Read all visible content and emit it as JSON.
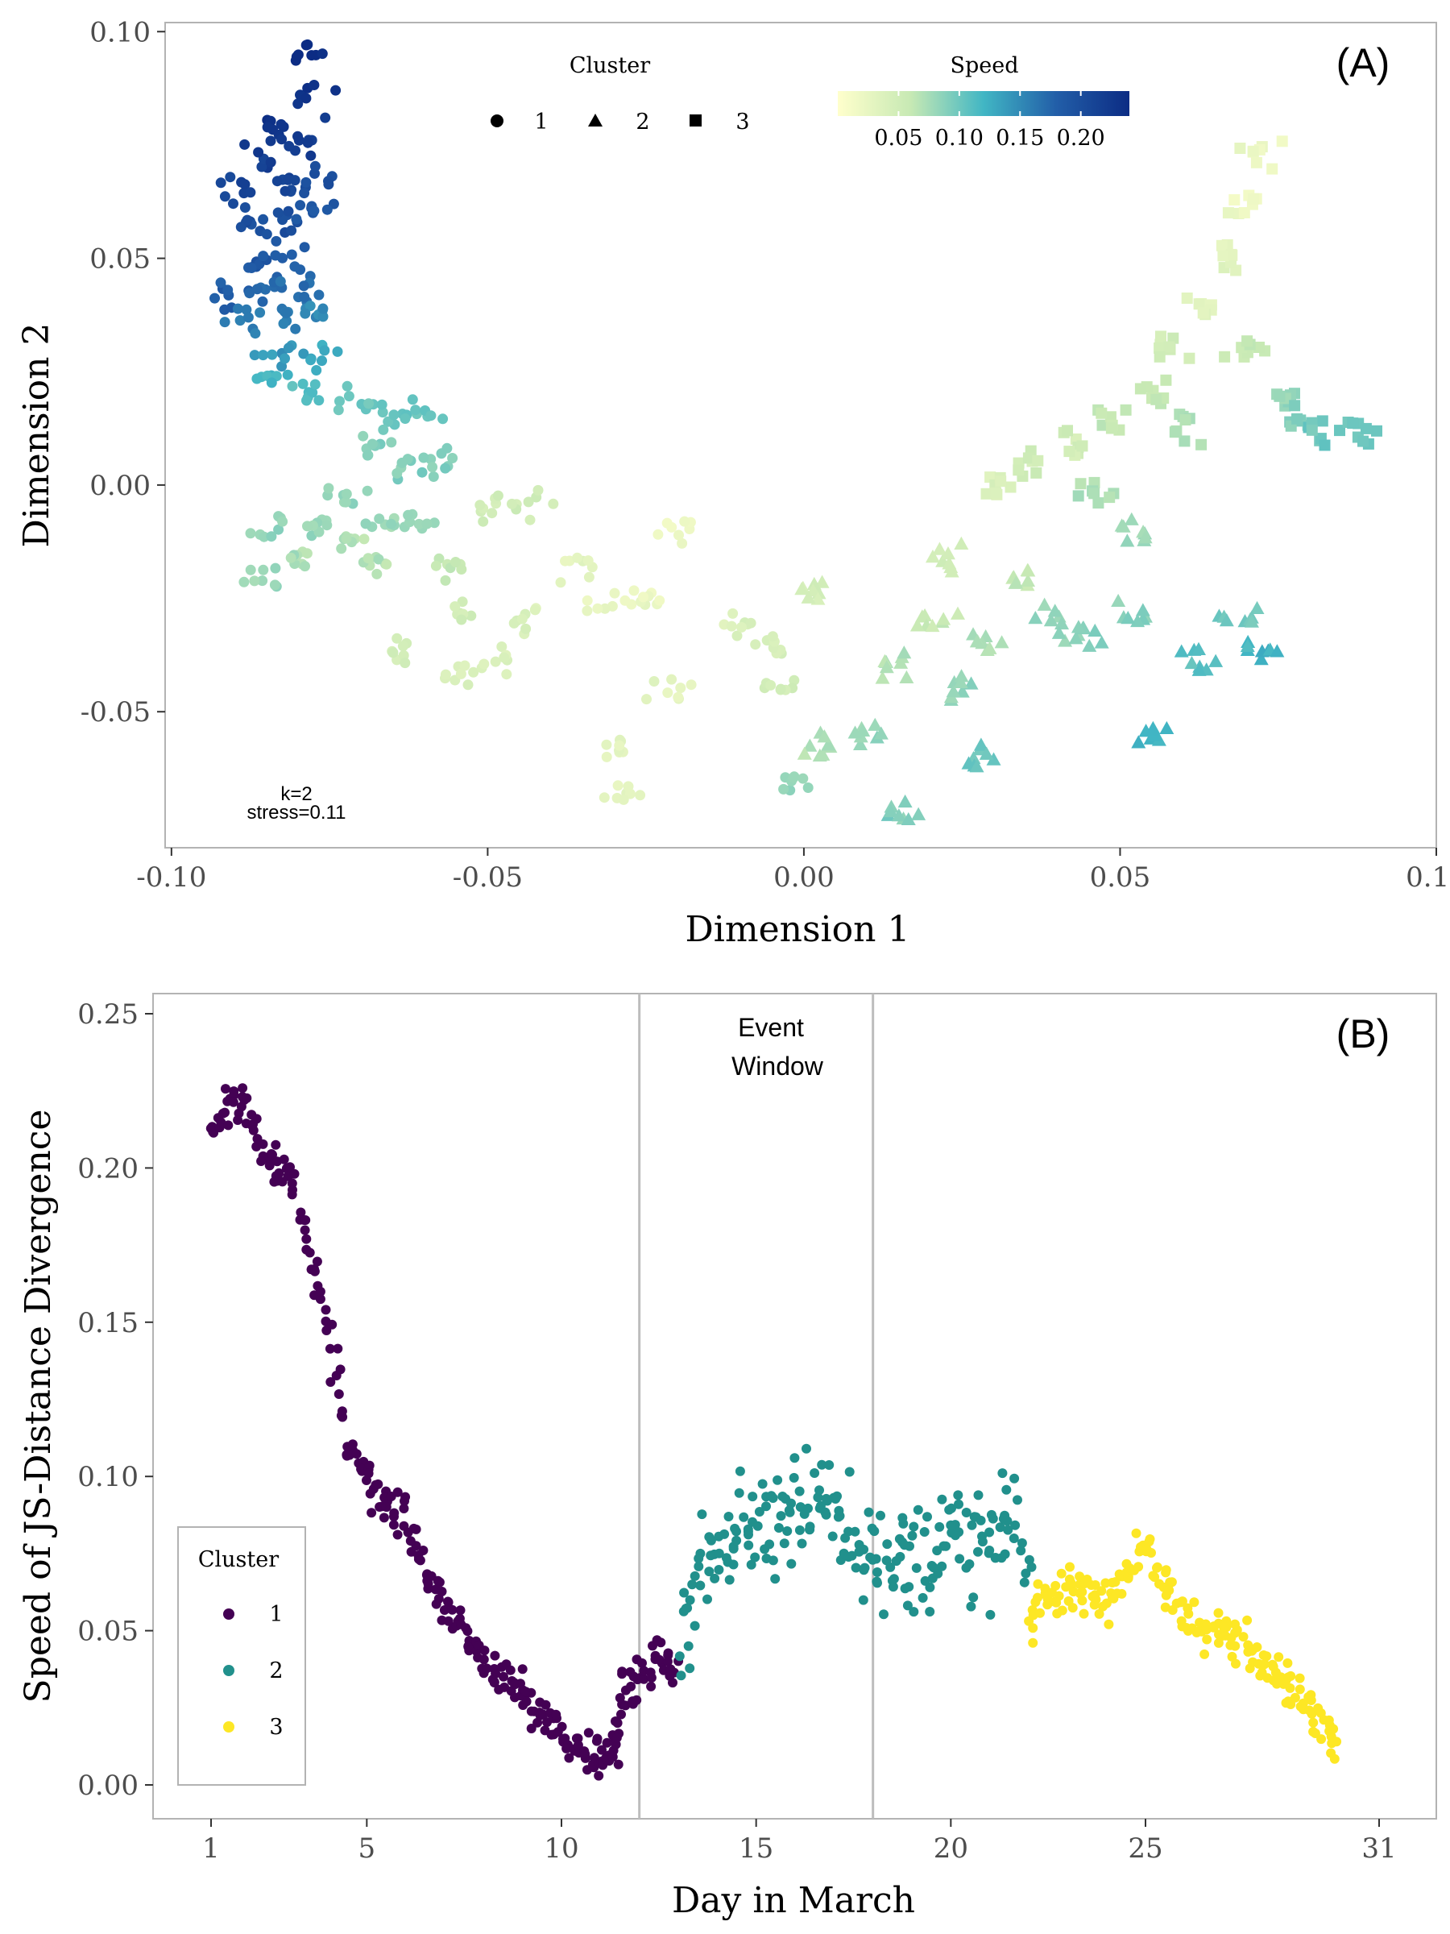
{
  "panel_a": {
    "tag": "(A)",
    "xlabel": "Dimension 1",
    "ylabel": "Dimension 2",
    "xticks": [
      "-0.10",
      "-0.05",
      "0.00",
      "0.05",
      "0.10"
    ],
    "yticks": [
      "0.10",
      "0.05",
      "0.00",
      "-0.05"
    ],
    "shape_legend_title": "Cluster",
    "shape_legend": [
      {
        "label": "1",
        "shape": "circle"
      },
      {
        "label": "2",
        "shape": "triangle"
      },
      {
        "label": "3",
        "shape": "square"
      }
    ],
    "colorbar_title": "Speed",
    "colorbar_ticks": [
      "0.05",
      "0.10",
      "0.15",
      "0.20"
    ],
    "annotation_k": "k=2",
    "annotation_stress": "stress=0.11"
  },
  "panel_b": {
    "tag": "(B)",
    "xlabel": "Day in March",
    "ylabel": "Speed of JS-Distance Divergence",
    "xticks": [
      "1",
      "5",
      "10",
      "15",
      "20",
      "25",
      "31"
    ],
    "yticks": [
      "0.25",
      "0.20",
      "0.15",
      "0.10",
      "0.05",
      "0.00"
    ],
    "event_label_1": "Event",
    "event_label_2": "Window",
    "legend_title": "Cluster",
    "legend": [
      {
        "label": "1",
        "color": "#440154"
      },
      {
        "label": "2",
        "color": "#21908C"
      },
      {
        "label": "3",
        "color": "#FDE725"
      }
    ]
  },
  "colors": {
    "speed_low": "#FFFFCC",
    "speed_mid": "#41B6C4",
    "speed_high": "#0C2C84",
    "cluster1": "#440154",
    "cluster2": "#21908C",
    "cluster3": "#FDE725",
    "frame": "#b3b3b3",
    "event_lines": "#bdbdbd"
  },
  "chart_data": [
    {
      "type": "scatter",
      "title": "",
      "xlabel": "Dimension 1",
      "ylabel": "Dimension 2",
      "xlim": [
        -0.101,
        0.1
      ],
      "ylim": [
        -0.08,
        0.102
      ],
      "color_variable": "Speed",
      "color_range": [
        0.0,
        0.24
      ],
      "shape_variable": "Cluster",
      "legend_placement": "top-center",
      "grid": false,
      "trajectory": [
        {
          "x": -0.079,
          "y": 0.095,
          "speed": 0.24
        },
        {
          "x": -0.084,
          "y": 0.08,
          "speed": 0.23
        },
        {
          "x": -0.078,
          "y": 0.085,
          "speed": 0.23
        },
        {
          "x": -0.086,
          "y": 0.072,
          "speed": 0.22
        },
        {
          "x": -0.079,
          "y": 0.075,
          "speed": 0.22
        },
        {
          "x": -0.09,
          "y": 0.066,
          "speed": 0.21
        },
        {
          "x": -0.083,
          "y": 0.066,
          "speed": 0.21
        },
        {
          "x": -0.077,
          "y": 0.067,
          "speed": 0.2
        },
        {
          "x": -0.088,
          "y": 0.058,
          "speed": 0.2
        },
        {
          "x": -0.082,
          "y": 0.058,
          "speed": 0.2
        },
        {
          "x": -0.078,
          "y": 0.06,
          "speed": 0.19
        },
        {
          "x": -0.087,
          "y": 0.05,
          "speed": 0.19
        },
        {
          "x": -0.081,
          "y": 0.05,
          "speed": 0.18
        },
        {
          "x": -0.091,
          "y": 0.042,
          "speed": 0.18
        },
        {
          "x": -0.085,
          "y": 0.043,
          "speed": 0.17
        },
        {
          "x": -0.079,
          "y": 0.043,
          "speed": 0.17
        },
        {
          "x": -0.089,
          "y": 0.036,
          "speed": 0.16
        },
        {
          "x": -0.082,
          "y": 0.037,
          "speed": 0.16
        },
        {
          "x": -0.077,
          "y": 0.038,
          "speed": 0.15
        },
        {
          "x": -0.083,
          "y": 0.029,
          "speed": 0.14
        },
        {
          "x": -0.076,
          "y": 0.028,
          "speed": 0.13
        },
        {
          "x": -0.085,
          "y": 0.024,
          "speed": 0.12
        },
        {
          "x": -0.079,
          "y": 0.02,
          "speed": 0.11
        },
        {
          "x": -0.072,
          "y": 0.018,
          "speed": 0.1
        },
        {
          "x": -0.065,
          "y": 0.015,
          "speed": 0.1
        },
        {
          "x": -0.06,
          "y": 0.016,
          "speed": 0.1
        },
        {
          "x": -0.068,
          "y": 0.008,
          "speed": 0.09
        },
        {
          "x": -0.062,
          "y": 0.004,
          "speed": 0.09
        },
        {
          "x": -0.057,
          "y": 0.005,
          "speed": 0.09
        },
        {
          "x": -0.072,
          "y": -0.002,
          "speed": 0.08
        },
        {
          "x": -0.066,
          "y": -0.008,
          "speed": 0.08
        },
        {
          "x": -0.06,
          "y": -0.008,
          "speed": 0.08
        },
        {
          "x": -0.085,
          "y": -0.01,
          "speed": 0.08
        },
        {
          "x": -0.078,
          "y": -0.01,
          "speed": 0.08
        },
        {
          "x": -0.071,
          "y": -0.012,
          "speed": 0.07
        },
        {
          "x": -0.085,
          "y": -0.02,
          "speed": 0.08
        },
        {
          "x": -0.079,
          "y": -0.018,
          "speed": 0.07
        },
        {
          "x": -0.067,
          "y": -0.018,
          "speed": 0.07
        },
        {
          "x": -0.056,
          "y": -0.018,
          "speed": 0.06
        },
        {
          "x": -0.05,
          "y": -0.005,
          "speed": 0.05
        },
        {
          "x": -0.043,
          "y": -0.004,
          "speed": 0.05
        },
        {
          "x": -0.054,
          "y": -0.028,
          "speed": 0.05
        },
        {
          "x": -0.064,
          "y": -0.036,
          "speed": 0.05
        },
        {
          "x": -0.055,
          "y": -0.042,
          "speed": 0.04
        },
        {
          "x": -0.048,
          "y": -0.038,
          "speed": 0.04
        },
        {
          "x": -0.045,
          "y": -0.03,
          "speed": 0.04
        },
        {
          "x": -0.036,
          "y": -0.018,
          "speed": 0.03
        },
        {
          "x": -0.031,
          "y": -0.026,
          "speed": 0.02
        },
        {
          "x": -0.025,
          "y": -0.025,
          "speed": 0.02
        },
        {
          "x": -0.02,
          "y": -0.01,
          "speed": 0.02
        },
        {
          "x": -0.022,
          "y": -0.045,
          "speed": 0.03
        },
        {
          "x": -0.029,
          "y": -0.058,
          "speed": 0.03
        },
        {
          "x": -0.029,
          "y": -0.068,
          "speed": 0.03
        },
        {
          "x": -0.01,
          "y": -0.03,
          "speed": 0.04
        },
        {
          "x": -0.005,
          "y": -0.036,
          "speed": 0.04
        },
        {
          "x": -0.004,
          "y": -0.045,
          "speed": 0.05
        },
        {
          "x": 0.002,
          "y": -0.023,
          "speed": 0.05
        },
        {
          "x": 0.003,
          "y": -0.058,
          "speed": 0.07
        },
        {
          "x": -0.002,
          "y": -0.066,
          "speed": 0.08
        },
        {
          "x": 0.01,
          "y": -0.055,
          "speed": 0.08
        },
        {
          "x": 0.015,
          "y": -0.072,
          "speed": 0.09
        },
        {
          "x": 0.014,
          "y": -0.04,
          "speed": 0.07
        },
        {
          "x": 0.02,
          "y": -0.03,
          "speed": 0.06
        },
        {
          "x": 0.025,
          "y": -0.045,
          "speed": 0.08
        },
        {
          "x": 0.03,
          "y": -0.035,
          "speed": 0.07
        },
        {
          "x": 0.028,
          "y": -0.06,
          "speed": 0.1
        },
        {
          "x": 0.022,
          "y": -0.015,
          "speed": 0.05
        },
        {
          "x": 0.034,
          "y": -0.02,
          "speed": 0.06
        },
        {
          "x": 0.04,
          "y": -0.03,
          "speed": 0.08
        },
        {
          "x": 0.045,
          "y": -0.033,
          "speed": 0.09
        },
        {
          "x": 0.052,
          "y": -0.028,
          "speed": 0.09
        },
        {
          "x": 0.055,
          "y": -0.055,
          "speed": 0.12
        },
        {
          "x": 0.062,
          "y": -0.04,
          "speed": 0.11
        },
        {
          "x": 0.068,
          "y": -0.03,
          "speed": 0.1
        },
        {
          "x": 0.072,
          "y": -0.037,
          "speed": 0.12
        },
        {
          "x": 0.03,
          "y": 0.0,
          "speed": 0.04
        },
        {
          "x": 0.036,
          "y": 0.005,
          "speed": 0.05
        },
        {
          "x": 0.043,
          "y": 0.01,
          "speed": 0.05
        },
        {
          "x": 0.048,
          "y": 0.015,
          "speed": 0.06
        },
        {
          "x": 0.046,
          "y": -0.002,
          "speed": 0.07
        },
        {
          "x": 0.052,
          "y": -0.01,
          "speed": 0.08
        },
        {
          "x": 0.056,
          "y": 0.02,
          "speed": 0.06
        },
        {
          "x": 0.06,
          "y": 0.012,
          "speed": 0.07
        },
        {
          "x": 0.058,
          "y": 0.03,
          "speed": 0.05
        },
        {
          "x": 0.063,
          "y": 0.04,
          "speed": 0.03
        },
        {
          "x": 0.067,
          "y": 0.05,
          "speed": 0.03
        },
        {
          "x": 0.07,
          "y": 0.062,
          "speed": 0.02
        },
        {
          "x": 0.073,
          "y": 0.073,
          "speed": 0.02
        },
        {
          "x": 0.07,
          "y": 0.03,
          "speed": 0.06
        },
        {
          "x": 0.075,
          "y": 0.02,
          "speed": 0.08
        },
        {
          "x": 0.078,
          "y": 0.014,
          "speed": 0.09
        },
        {
          "x": 0.082,
          "y": 0.012,
          "speed": 0.1
        },
        {
          "x": 0.088,
          "y": 0.013,
          "speed": 0.1
        }
      ],
      "annotations": [
        "k=2",
        "stress=0.11"
      ]
    },
    {
      "type": "scatter",
      "title": "",
      "xlabel": "Day in March",
      "ylabel": "Speed of JS-Distance Divergence",
      "xlim": [
        1,
        31
      ],
      "ylim": [
        0,
        0.25
      ],
      "event_window": [
        12,
        18
      ],
      "legend_placement": "bottom-left",
      "grid": false,
      "series": [
        {
          "name": "1",
          "color": "#440154",
          "x": [
            1,
            1.5,
            2,
            2.5,
            3,
            3.5,
            4,
            4.5,
            5,
            5.5,
            6,
            6.5,
            7,
            7.5,
            8,
            8.5,
            9,
            9.5,
            10,
            10.5,
            11,
            11.3,
            11.6,
            12,
            12.5,
            13
          ],
          "y": [
            0.21,
            0.225,
            0.218,
            0.2,
            0.2,
            0.175,
            0.15,
            0.11,
            0.1,
            0.09,
            0.088,
            0.065,
            0.058,
            0.05,
            0.04,
            0.035,
            0.03,
            0.022,
            0.018,
            0.012,
            0.008,
            0.01,
            0.03,
            0.035,
            0.042,
            0.038
          ]
        },
        {
          "name": "2",
          "color": "#21908C",
          "x": [
            13,
            13.5,
            14,
            14.5,
            15,
            15.5,
            16,
            16.5,
            17,
            17.5,
            18,
            18.5,
            19,
            19.5,
            20,
            20.5,
            21,
            21.5,
            22
          ],
          "y": [
            0.04,
            0.07,
            0.075,
            0.08,
            0.085,
            0.08,
            0.09,
            0.095,
            0.082,
            0.078,
            0.07,
            0.075,
            0.072,
            0.07,
            0.085,
            0.08,
            0.078,
            0.09,
            0.06
          ]
        },
        {
          "name": "3",
          "color": "#FDE725",
          "x": [
            22,
            22.5,
            23,
            23.5,
            24,
            24.5,
            25,
            25.5,
            26,
            26.5,
            27,
            27.5,
            28,
            28.5,
            29,
            29.5,
            30
          ],
          "y": [
            0.055,
            0.06,
            0.065,
            0.062,
            0.06,
            0.07,
            0.075,
            0.065,
            0.055,
            0.05,
            0.052,
            0.045,
            0.038,
            0.035,
            0.03,
            0.022,
            0.01
          ]
        }
      ]
    }
  ]
}
